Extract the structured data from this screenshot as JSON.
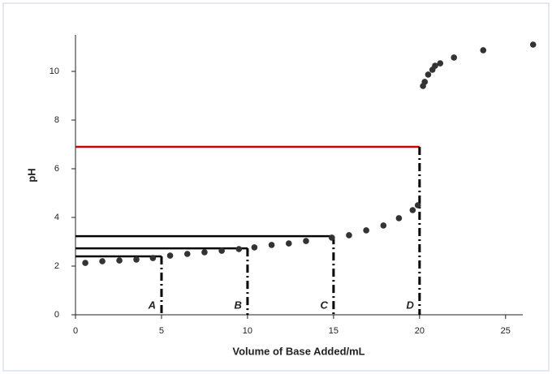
{
  "chart_data": {
    "type": "scatter",
    "x_label": "Volume of Base Added/mL",
    "y_label": "pH",
    "xlim": [
      0,
      26
    ],
    "xticks": [
      0,
      5,
      10,
      15,
      20,
      25
    ],
    "ylim": [
      0,
      11.5
    ],
    "yticks": [
      0,
      2,
      4,
      6,
      8,
      10
    ],
    "color": "#333333",
    "x": [
      0.57,
      1.56,
      2.55,
      3.54,
      4.5,
      5.5,
      6.5,
      7.5,
      8.5,
      9.5,
      10.4,
      11.4,
      12.4,
      13.4,
      14.9,
      15.9,
      16.9,
      17.9,
      18.8,
      19.6,
      19.9,
      20.2,
      20.3,
      20.5,
      20.75,
      20.9,
      21.2,
      22.0,
      23.7,
      26.6
    ],
    "y": [
      2.13,
      2.2,
      2.23,
      2.27,
      2.33,
      2.43,
      2.5,
      2.57,
      2.63,
      2.7,
      2.77,
      2.87,
      2.93,
      3.03,
      3.17,
      3.27,
      3.47,
      3.67,
      3.97,
      4.3,
      4.5,
      9.4,
      9.57,
      9.87,
      10.07,
      10.23,
      10.33,
      10.57,
      10.87,
      11.1
    ],
    "annotations": [
      {
        "label": "A",
        "x": 5,
        "y": 2.4,
        "color": "#000000"
      },
      {
        "label": "B",
        "x": 10,
        "y": 2.73,
        "color": "#000000"
      },
      {
        "label": "C",
        "x": 15,
        "y": 3.23,
        "color": "#000000"
      },
      {
        "label": "D",
        "x": 20,
        "y": 6.9,
        "color": "#cc0000"
      }
    ]
  }
}
